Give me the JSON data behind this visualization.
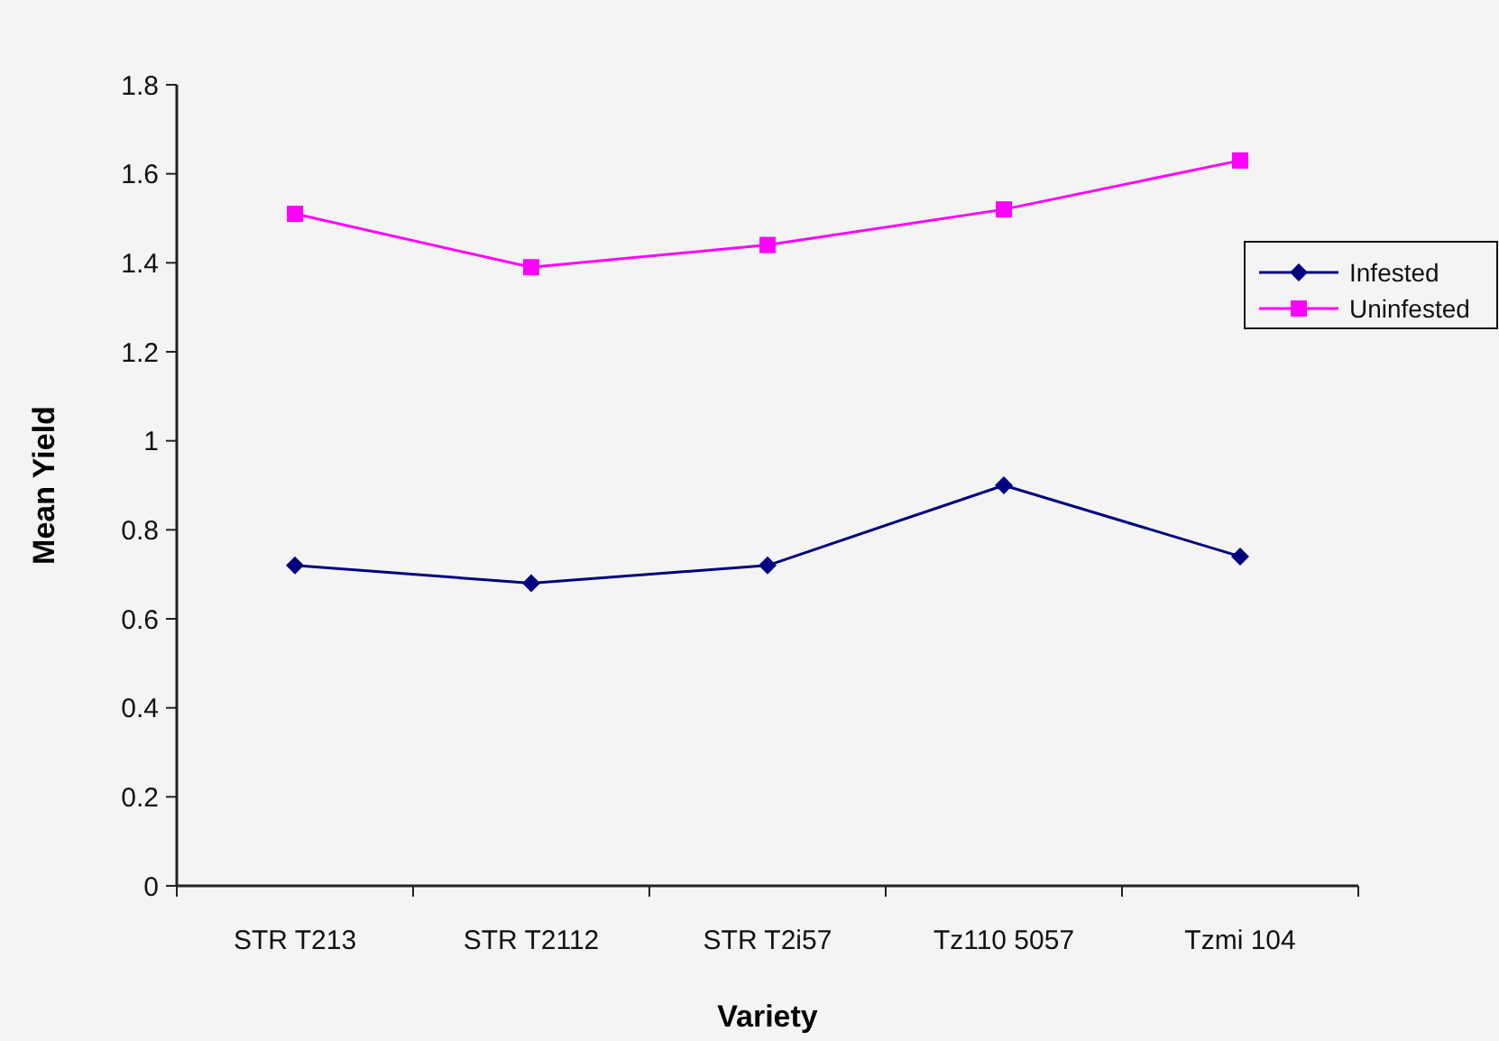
{
  "chart_data": {
    "type": "line",
    "xlabel": "Variety",
    "ylabel": "Mean Yield",
    "categories": [
      "STR T213",
      "STR T2112",
      "STR T2i57",
      "Tz110 5057",
      "Tzmi 104"
    ],
    "series": [
      {
        "name": "Infested",
        "color": "#000080",
        "marker": "diamond",
        "values": [
          0.72,
          0.68,
          0.72,
          0.9,
          0.74
        ]
      },
      {
        "name": "Uninfested",
        "color": "#ff00ff",
        "marker": "square",
        "values": [
          1.51,
          1.39,
          1.44,
          1.52,
          1.63
        ]
      }
    ],
    "ylim": [
      0,
      1.8
    ],
    "yticks": [
      0,
      0.2,
      0.4,
      0.6,
      0.8,
      1,
      1.2,
      1.4,
      1.6,
      1.8
    ],
    "grid": false,
    "legend": "right"
  }
}
